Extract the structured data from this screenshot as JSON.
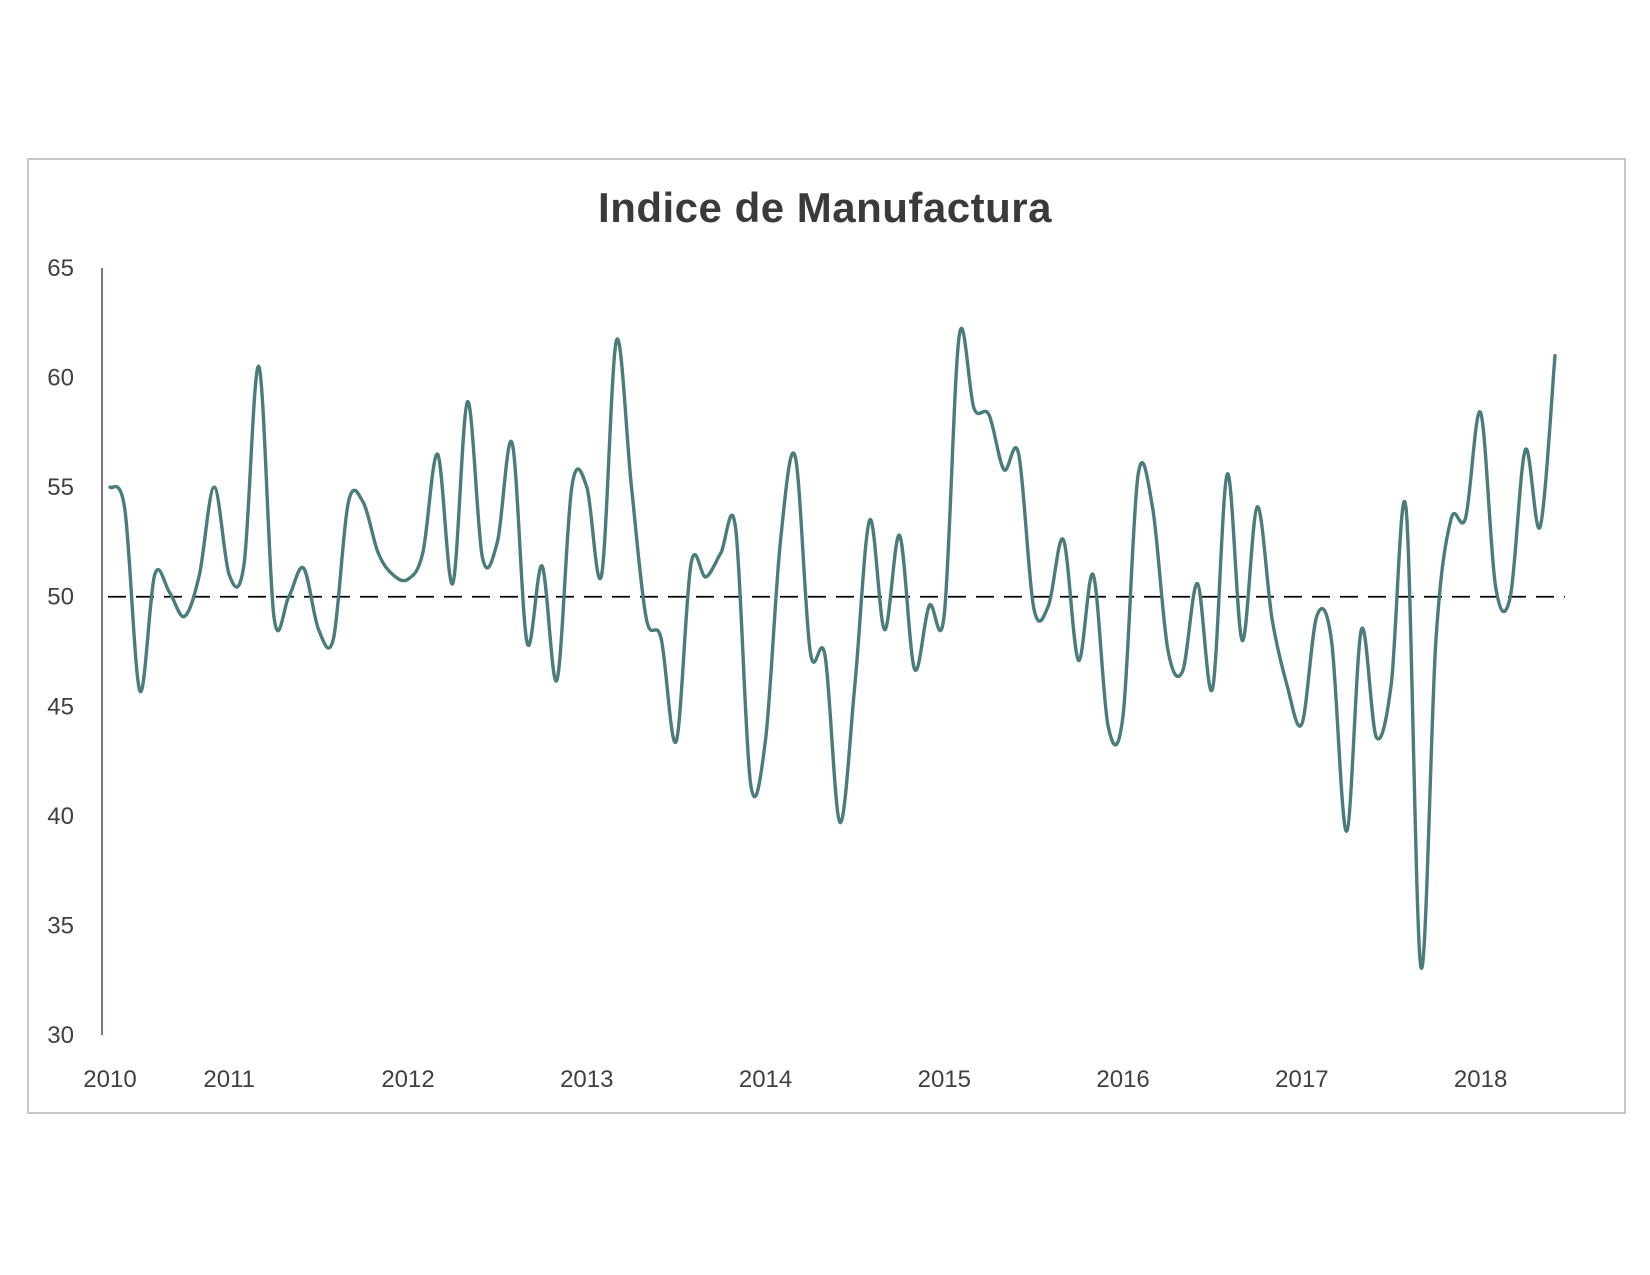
{
  "chart_data": {
    "type": "line",
    "title": "Indice de Manufactura",
    "xlabel": "",
    "ylabel": "",
    "ylim": [
      30,
      65
    ],
    "yticks": [
      "30",
      "35",
      "40",
      "45",
      "50",
      "55",
      "60",
      "65"
    ],
    "xticks": [
      {
        "label": "2010",
        "x": 2010.0
      },
      {
        "label": "2011",
        "x": 2010.667
      },
      {
        "label": "2012",
        "x": 2011.667
      },
      {
        "label": "2013",
        "x": 2012.667
      },
      {
        "label": "2014",
        "x": 2013.667
      },
      {
        "label": "2015",
        "x": 2014.667
      },
      {
        "label": "2016",
        "x": 2015.667
      },
      {
        "label": "2017",
        "x": 2016.667
      },
      {
        "label": "2018",
        "x": 2017.667
      }
    ],
    "reference_line": {
      "y": 50,
      "style": "dashed",
      "color": "#000000"
    },
    "grid": false,
    "legend": "none",
    "series": [
      {
        "color": "#4a7c7c",
        "points": [
          [
            2010.0,
            55.0
          ],
          [
            2010.083,
            54.0
          ],
          [
            2010.167,
            45.7
          ],
          [
            2010.25,
            51.0
          ],
          [
            2010.333,
            50.2
          ],
          [
            2010.417,
            49.1
          ],
          [
            2010.5,
            51.0
          ],
          [
            2010.583,
            55.0
          ],
          [
            2010.667,
            51.0
          ],
          [
            2010.75,
            51.5
          ],
          [
            2010.833,
            60.5
          ],
          [
            2010.917,
            49.1
          ],
          [
            2011.0,
            50.0
          ],
          [
            2011.083,
            51.3
          ],
          [
            2011.167,
            48.5
          ],
          [
            2011.25,
            48.1
          ],
          [
            2011.333,
            54.3
          ],
          [
            2011.417,
            54.3
          ],
          [
            2011.5,
            52.0
          ],
          [
            2011.583,
            51.0
          ],
          [
            2011.667,
            50.8
          ],
          [
            2011.75,
            52.0
          ],
          [
            2011.833,
            56.5
          ],
          [
            2011.917,
            50.6
          ],
          [
            2012.0,
            58.9
          ],
          [
            2012.083,
            51.8
          ],
          [
            2012.167,
            52.5
          ],
          [
            2012.25,
            57.0
          ],
          [
            2012.333,
            47.9
          ],
          [
            2012.417,
            51.4
          ],
          [
            2012.5,
            46.2
          ],
          [
            2012.583,
            55.0
          ],
          [
            2012.667,
            55.0
          ],
          [
            2012.75,
            51.0
          ],
          [
            2012.833,
            61.7
          ],
          [
            2012.917,
            55.0
          ],
          [
            2013.0,
            49.0
          ],
          [
            2013.083,
            48.1
          ],
          [
            2013.167,
            43.4
          ],
          [
            2013.25,
            51.5
          ],
          [
            2013.333,
            50.9
          ],
          [
            2013.417,
            52.0
          ],
          [
            2013.5,
            53.1
          ],
          [
            2013.583,
            41.5
          ],
          [
            2013.667,
            43.5
          ],
          [
            2013.75,
            52.5
          ],
          [
            2013.833,
            56.4
          ],
          [
            2013.917,
            47.5
          ],
          [
            2014.0,
            47.3
          ],
          [
            2014.083,
            39.7
          ],
          [
            2014.167,
            46.0
          ],
          [
            2014.25,
            53.5
          ],
          [
            2014.333,
            48.5
          ],
          [
            2014.417,
            52.8
          ],
          [
            2014.5,
            46.7
          ],
          [
            2014.583,
            49.6
          ],
          [
            2014.667,
            49.2
          ],
          [
            2014.75,
            61.9
          ],
          [
            2014.833,
            58.6
          ],
          [
            2014.917,
            58.3
          ],
          [
            2015.0,
            55.8
          ],
          [
            2015.083,
            56.5
          ],
          [
            2015.167,
            49.5
          ],
          [
            2015.25,
            49.6
          ],
          [
            2015.333,
            52.6
          ],
          [
            2015.417,
            47.1
          ],
          [
            2015.5,
            51.0
          ],
          [
            2015.583,
            44.1
          ],
          [
            2015.667,
            44.6
          ],
          [
            2015.75,
            55.5
          ],
          [
            2015.833,
            54.0
          ],
          [
            2015.917,
            47.6
          ],
          [
            2016.0,
            46.6
          ],
          [
            2016.083,
            50.6
          ],
          [
            2016.167,
            45.8
          ],
          [
            2016.25,
            55.6
          ],
          [
            2016.333,
            48.0
          ],
          [
            2016.417,
            54.1
          ],
          [
            2016.5,
            49.0
          ],
          [
            2016.583,
            46.0
          ],
          [
            2016.667,
            44.2
          ],
          [
            2016.75,
            49.1
          ],
          [
            2016.833,
            48.0
          ],
          [
            2016.917,
            39.3
          ],
          [
            2017.0,
            48.5
          ],
          [
            2017.083,
            43.6
          ],
          [
            2017.167,
            46.0
          ],
          [
            2017.25,
            54.0
          ],
          [
            2017.333,
            33.1
          ],
          [
            2017.417,
            48.0
          ],
          [
            2017.5,
            53.5
          ],
          [
            2017.583,
            53.6
          ],
          [
            2017.667,
            58.4
          ],
          [
            2017.75,
            50.5
          ],
          [
            2017.833,
            50.0
          ],
          [
            2017.917,
            56.7
          ],
          [
            2018.0,
            53.2
          ],
          [
            2018.083,
            61.0
          ]
        ]
      }
    ]
  }
}
